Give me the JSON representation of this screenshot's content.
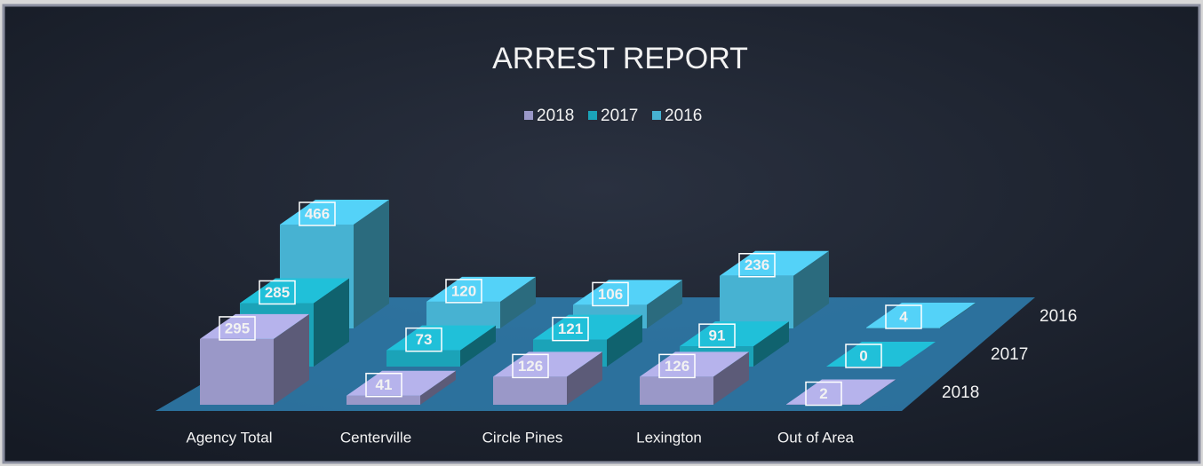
{
  "chart_data": {
    "type": "bar3d",
    "title": "ARREST REPORT",
    "categories": [
      "Agency Total",
      "Centerville",
      "Circle Pines",
      "Lexington",
      "Out of Area"
    ],
    "series": [
      {
        "name": "2018",
        "color": "#9a98c8",
        "values": [
          295,
          41,
          126,
          126,
          2
        ]
      },
      {
        "name": "2017",
        "color": "#1ba3b8",
        "values": [
          285,
          73,
          121,
          91,
          0
        ]
      },
      {
        "name": "2016",
        "color": "#47b2d2",
        "values": [
          466,
          120,
          106,
          236,
          4
        ]
      }
    ]
  }
}
